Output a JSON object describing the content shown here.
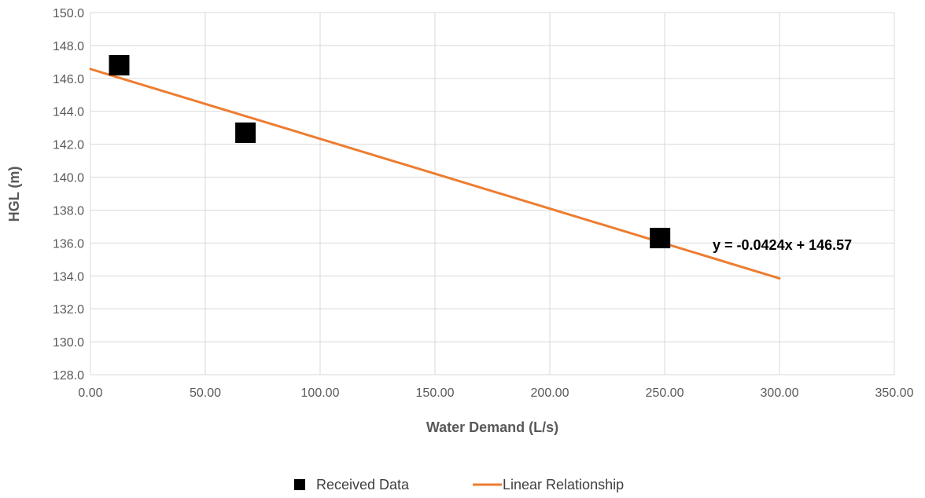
{
  "chart_data": {
    "type": "scatter",
    "title": "",
    "xlabel": "Water Demand (L/s)",
    "ylabel": "HGL (m)",
    "xlim": [
      0,
      350
    ],
    "ylim": [
      128,
      150
    ],
    "x_ticks": [
      "0.00",
      "50.00",
      "100.00",
      "150.00",
      "200.00",
      "250.00",
      "300.00",
      "350.00"
    ],
    "y_ticks": [
      "128.0",
      "130.0",
      "132.0",
      "134.0",
      "136.0",
      "138.0",
      "140.0",
      "142.0",
      "144.0",
      "146.0",
      "148.0",
      "150.0"
    ],
    "grid": true,
    "legend_position": "bottom",
    "series": [
      {
        "name": "Received Data",
        "kind": "scatter",
        "marker": "square",
        "color": "#000000",
        "points": [
          {
            "x": 12.5,
            "y": 146.8
          },
          {
            "x": 67.5,
            "y": 142.7
          },
          {
            "x": 248,
            "y": 136.3
          }
        ]
      },
      {
        "name": "Linear Relationship",
        "kind": "line",
        "color": "#ED7D31",
        "slope": -0.0424,
        "intercept": 146.57,
        "x_range": [
          0,
          300
        ]
      }
    ],
    "annotations": [
      {
        "text": "y = -0.0424x + 146.57"
      }
    ]
  }
}
